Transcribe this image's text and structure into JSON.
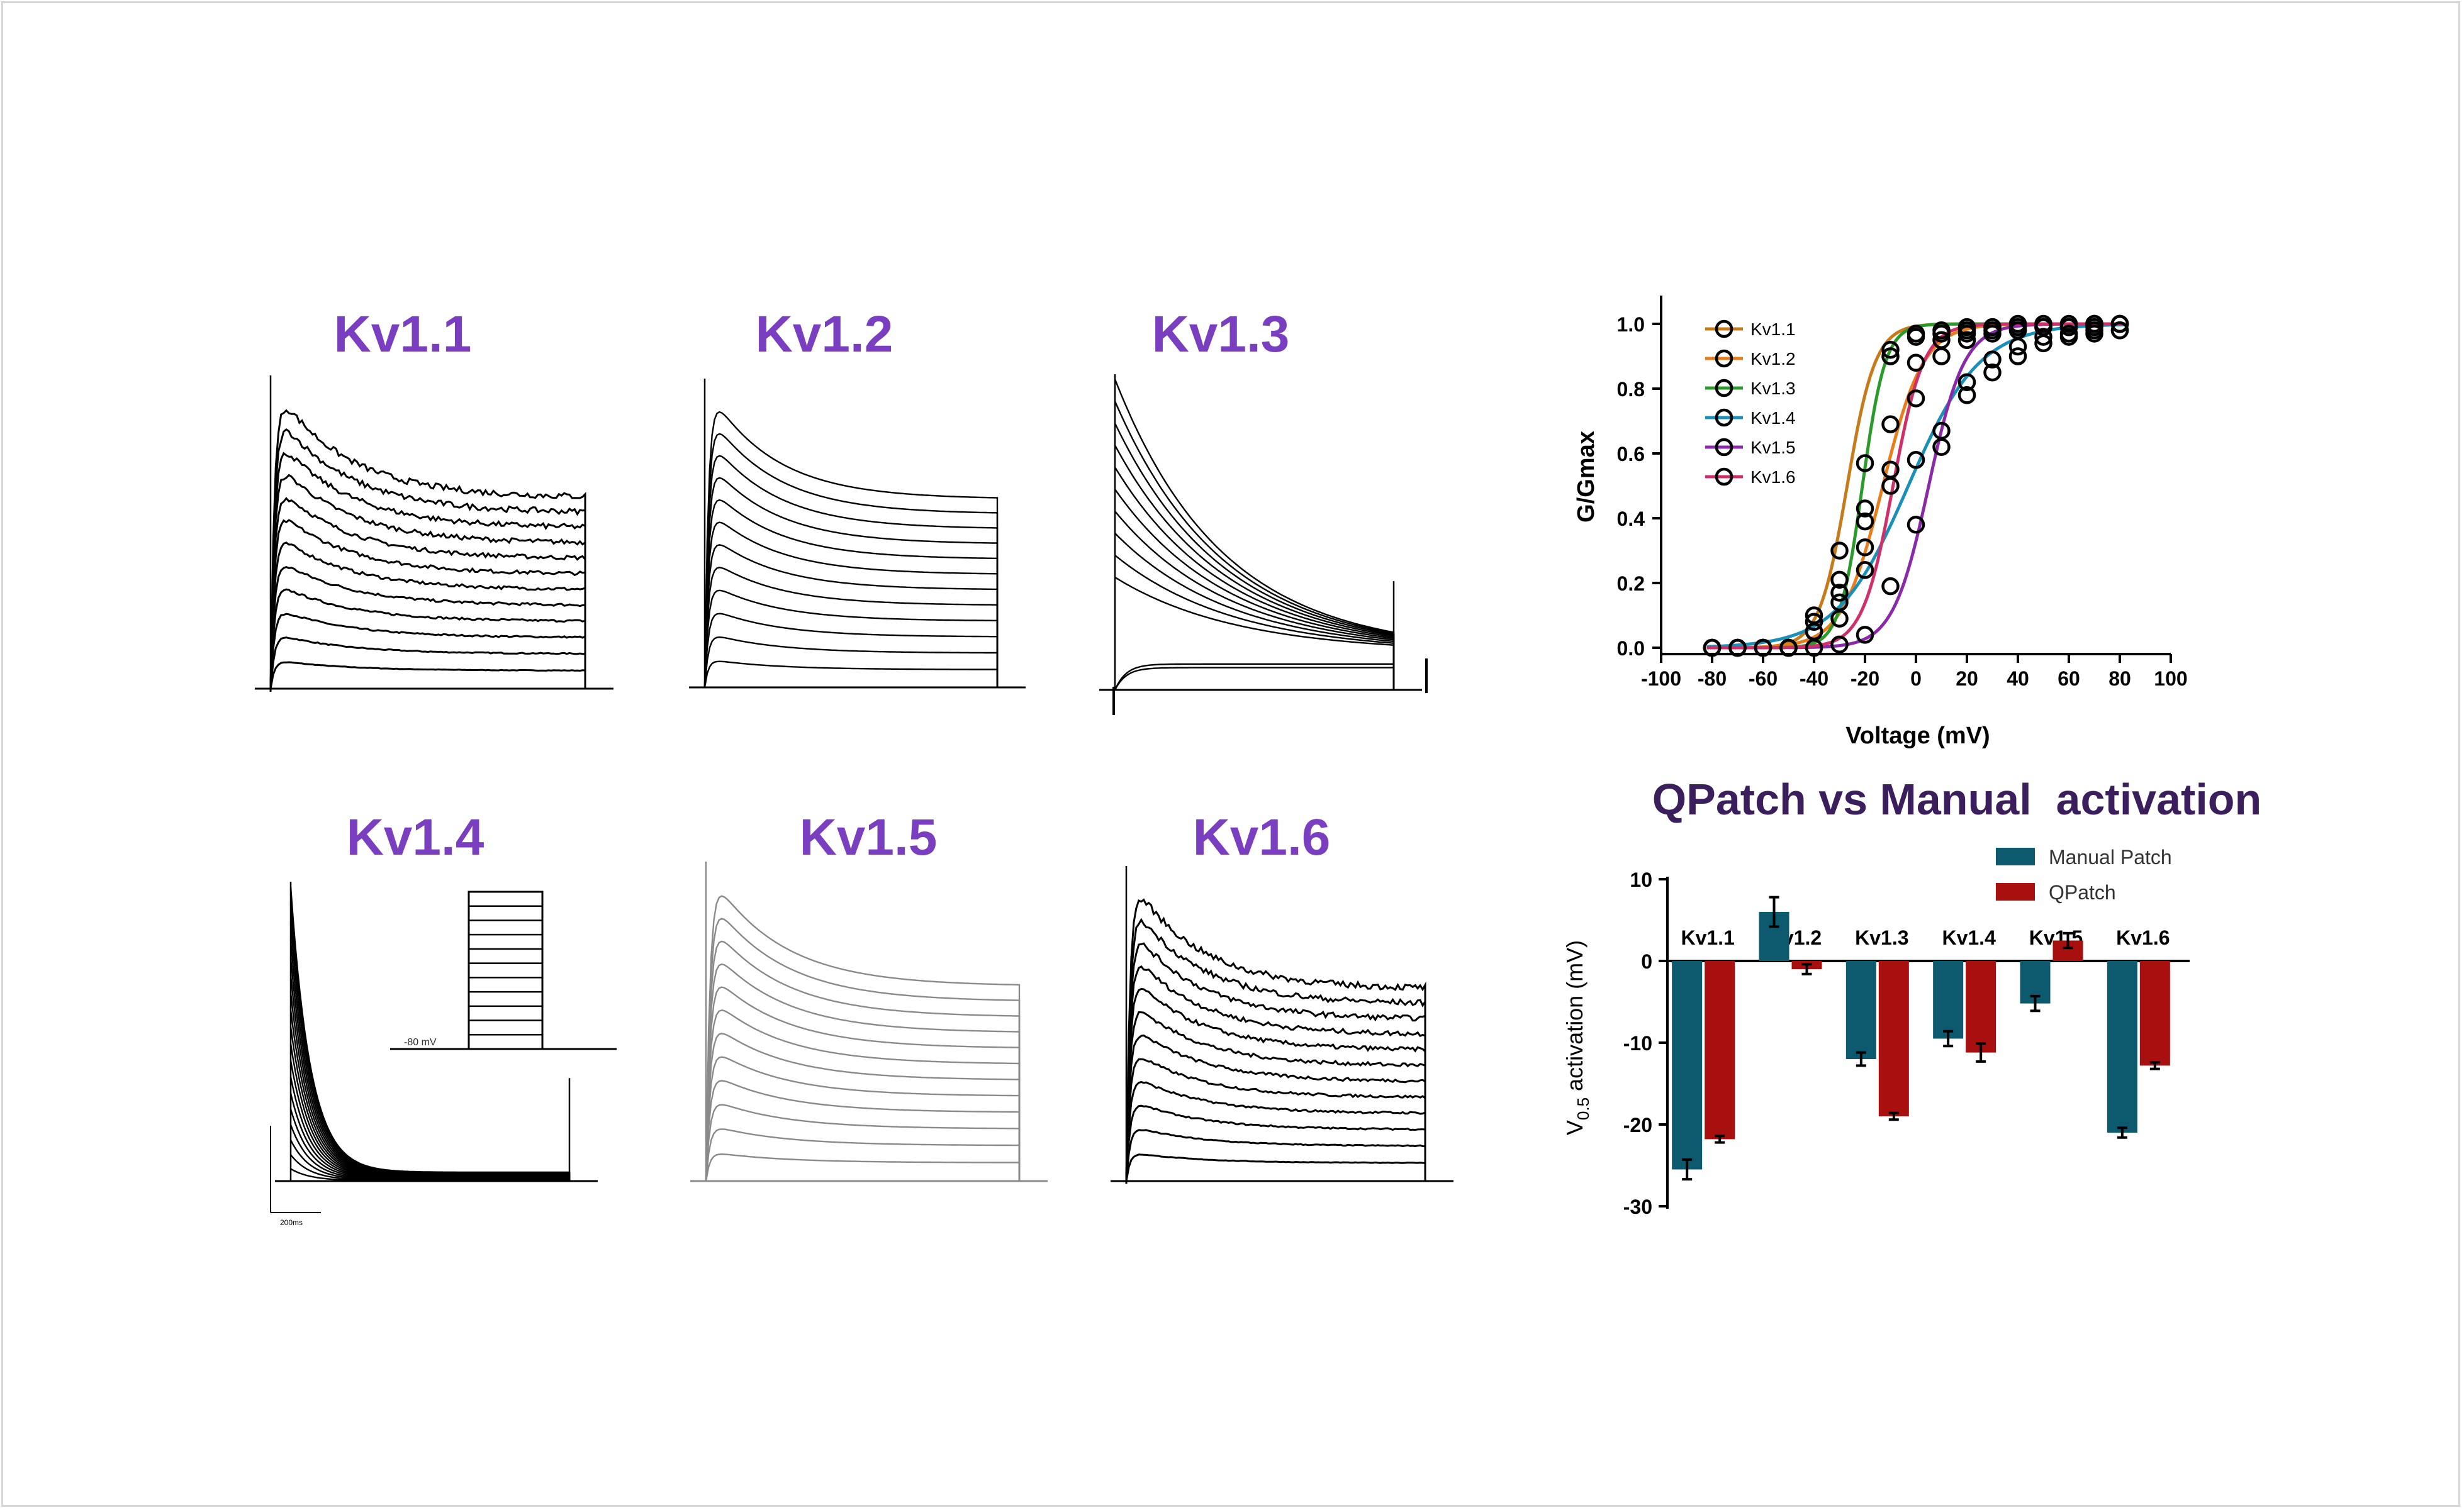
{
  "trace_panels": [
    {
      "title": "Kv1.1",
      "style": "noisy",
      "n_traces": 12,
      "decay": "slow",
      "color": "#000000"
    },
    {
      "title": "Kv1.2",
      "style": "smooth",
      "n_traces": 12,
      "decay": "slow",
      "color": "#000000"
    },
    {
      "title": "Kv1.3",
      "style": "smooth",
      "n_traces": 12,
      "decay": "fast-converging",
      "color": "#000000"
    },
    {
      "title": "Kv1.4",
      "style": "smooth",
      "n_traces": 18,
      "decay": "very-fast",
      "color": "#000000",
      "inset_protocol": {
        "holding_label": "-80 mV",
        "n_steps": 11
      },
      "scale_bar_label": "200ms"
    },
    {
      "title": "Kv1.5",
      "style": "smooth",
      "n_traces": 12,
      "decay": "slow",
      "color": "#8a8a8a"
    },
    {
      "title": "Kv1.6",
      "style": "noisy",
      "n_traces": 12,
      "decay": "slow",
      "color": "#000000"
    }
  ],
  "chart_data": [
    {
      "type": "scatter",
      "title": "",
      "xlabel": "Voltage (mV)",
      "ylabel": "G/Gmax",
      "xlim": [
        -100,
        100
      ],
      "ylim": [
        0.0,
        1.0
      ],
      "x_ticks": [
        "-100",
        "-80",
        "-60",
        "-40",
        "-20",
        "0",
        "20",
        "40",
        "60",
        "80",
        "100"
      ],
      "y_ticks": [
        "0.0",
        "0.2",
        "0.4",
        "0.6",
        "0.8",
        "1.0"
      ],
      "grid": false,
      "legend_position": "top-left",
      "x": [
        -80,
        -70,
        -60,
        -50,
        -40,
        -30,
        -20,
        -10,
        0,
        10,
        20,
        30,
        40,
        50,
        60,
        70,
        80
      ],
      "series": [
        {
          "name": "Kv1.1",
          "color": "#c77a1a",
          "v_half": -27,
          "slope": 5.5,
          "values": [
            0.0,
            0.0,
            0.0,
            0.0,
            0.05,
            0.3,
            0.57,
            0.92,
            0.96,
            0.97,
            0.98,
            0.99,
            0.99,
            0.99,
            0.99,
            1.0,
            1.0
          ]
        },
        {
          "name": "Kv1.2",
          "color": "#e87d1c",
          "v_half": -13,
          "slope": 8,
          "values": [
            0.0,
            0.0,
            0.0,
            0.0,
            0.08,
            0.17,
            0.43,
            0.69,
            0.88,
            0.95,
            0.97,
            0.98,
            0.98,
            0.99,
            0.99,
            1.0,
            1.0
          ]
        },
        {
          "name": "Kv1.3",
          "color": "#2a9a2a",
          "v_half": -21,
          "slope": 4.5,
          "values": [
            0.0,
            0.0,
            0.0,
            0.0,
            0.05,
            0.21,
            0.39,
            0.9,
            0.97,
            0.98,
            0.99,
            0.99,
            1.0,
            1.0,
            1.0,
            1.0,
            1.0
          ]
        },
        {
          "name": "Kv1.4",
          "color": "#1a8fb8",
          "v_half": -3,
          "slope": 14,
          "values": [
            0.0,
            0.0,
            0.0,
            0.0,
            0.1,
            0.14,
            0.31,
            0.5,
            0.58,
            0.67,
            0.78,
            0.85,
            0.9,
            0.94,
            0.96,
            0.97,
            0.98
          ]
        },
        {
          "name": "Kv1.5",
          "color": "#8a2aa8",
          "v_half": 5,
          "slope": 7,
          "values": [
            0.0,
            0.0,
            0.0,
            0.0,
            0.0,
            0.01,
            0.04,
            0.19,
            0.38,
            0.62,
            0.82,
            0.89,
            0.93,
            0.96,
            0.97,
            0.98,
            0.98
          ]
        },
        {
          "name": "Kv1.6",
          "color": "#d0306a",
          "v_half": -9,
          "slope": 6,
          "values": [
            0.0,
            0.0,
            0.0,
            0.0,
            0.05,
            0.09,
            0.24,
            0.55,
            0.77,
            0.9,
            0.95,
            0.97,
            0.98,
            0.99,
            0.99,
            0.99,
            1.0
          ]
        }
      ]
    },
    {
      "type": "bar",
      "title": "QPatch vs Manual  activation",
      "xlabel": "",
      "ylabel": "V0.5 activation (mV)",
      "ylabel_main": "V",
      "ylabel_sub": "0.5",
      "ylabel_rest": " activation (mV)",
      "ylim": [
        -30,
        10
      ],
      "y_ticks": [
        "10",
        "0",
        "-10",
        "-20",
        "-30"
      ],
      "categories": [
        "Kv1.1",
        "Kv1.2",
        "Kv1.3",
        "Kv1.4",
        "Kv1.5",
        "Kv1.6"
      ],
      "legend_position": "top-right",
      "series": [
        {
          "name": "Manual Patch",
          "color": "#0d5a6e",
          "values": [
            -25.5,
            6.0,
            -12.0,
            -9.5,
            -5.2,
            -21.0
          ],
          "errors": [
            1.2,
            1.8,
            0.8,
            0.9,
            0.9,
            0.6
          ]
        },
        {
          "name": "QPatch",
          "color": "#a80f0f",
          "values": [
            -21.8,
            -1.0,
            -19.0,
            -11.2,
            2.5,
            -12.8
          ],
          "errors": [
            0.4,
            0.6,
            0.4,
            1.1,
            0.9,
            0.4
          ]
        }
      ]
    }
  ]
}
